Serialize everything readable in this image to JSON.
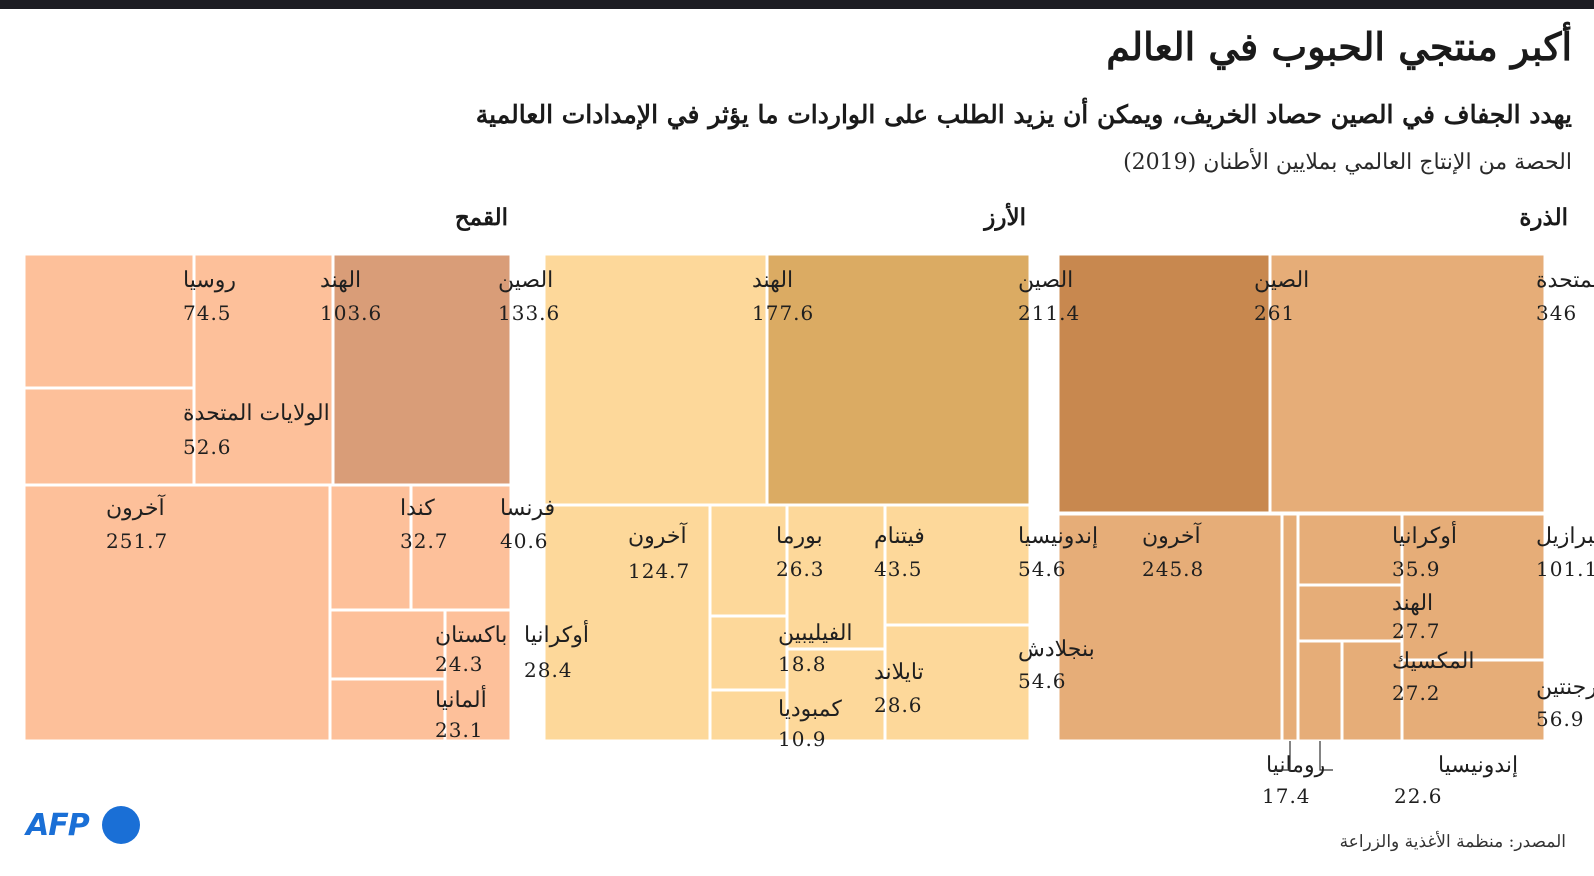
{
  "title": "أكبر منتجي الحبوب في العالم",
  "subtitle": "يهدد الجفاف في الصين حصاد الخريف، ويمكن أن يزيد الطلب على الواردات ما يؤثر في الإمدادات العالمية",
  "unit_note": "الحصة من الإنتاج العالمي بملايين الأطنان (2019)",
  "source": "المصدر: منظمة الأغذية والزراعة",
  "logo": "AFP",
  "colors": {
    "maize_top": "#c8884f",
    "maize": "#e6ad78",
    "rice_top": "#dbab63",
    "rice": "#fdd89a",
    "wheat_top": "#d99d78",
    "wheat": "#fdc09a",
    "brand": "#1a6fd6"
  },
  "chart_data": [
    {
      "type": "treemap",
      "title": "الذرة",
      "items": [
        {
          "name": "الولايات المتحدة",
          "value": 346
        },
        {
          "name": "الصين",
          "value": 261
        },
        {
          "name": "البرازيل",
          "value": 101.1
        },
        {
          "name": "الأرجنتين",
          "value": 56.9
        },
        {
          "name": "أوكرانيا",
          "value": 35.9
        },
        {
          "name": "الهند",
          "value": 27.7
        },
        {
          "name": "المكسيك",
          "value": 27.2
        },
        {
          "name": "إندونيسيا",
          "value": 22.6
        },
        {
          "name": "رومانيا",
          "value": 17.4
        },
        {
          "name": "آخرون",
          "value": 245.8
        }
      ]
    },
    {
      "type": "treemap",
      "title": "الأرز",
      "items": [
        {
          "name": "الصين",
          "value": 211.4
        },
        {
          "name": "الهند",
          "value": 177.6
        },
        {
          "name": "إندونيسيا",
          "value": 54.6
        },
        {
          "name": "بنجلادش",
          "value": 54.6
        },
        {
          "name": "فيتنام",
          "value": 43.5
        },
        {
          "name": "تايلاند",
          "value": 28.6
        },
        {
          "name": "بورما",
          "value": 26.3
        },
        {
          "name": "الفيليبين",
          "value": 18.8
        },
        {
          "name": "كمبوديا",
          "value": 10.9
        },
        {
          "name": "آخرون",
          "value": 124.7
        }
      ]
    },
    {
      "type": "treemap",
      "title": "القمح",
      "items": [
        {
          "name": "الصين",
          "value": 133.6
        },
        {
          "name": "الهند",
          "value": 103.6
        },
        {
          "name": "روسيا",
          "value": 74.5
        },
        {
          "name": "الولايات المتحدة",
          "value": 52.6
        },
        {
          "name": "فرنسا",
          "value": 40.6
        },
        {
          "name": "كندا",
          "value": 32.7
        },
        {
          "name": "أوكرانيا",
          "value": 28.4
        },
        {
          "name": "باكستان",
          "value": 24.3
        },
        {
          "name": "ألمانيا",
          "value": 23.1
        },
        {
          "name": "آخرون",
          "value": 251.7
        }
      ]
    }
  ]
}
